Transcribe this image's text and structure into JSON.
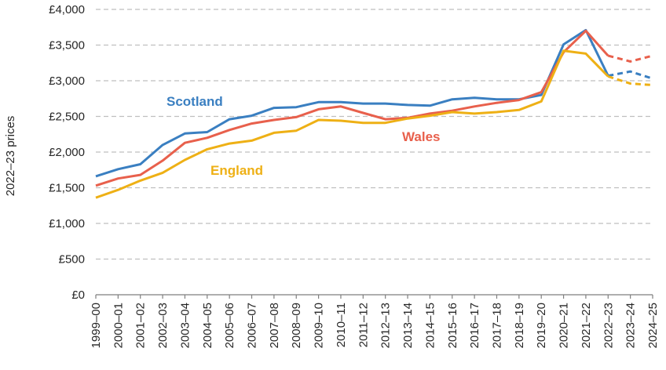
{
  "chart_data": {
    "type": "line",
    "ylabel": "2022–23 prices",
    "ylim": [
      0,
      4000
    ],
    "yticks": [
      0,
      500,
      1000,
      1500,
      2000,
      2500,
      3000,
      3500,
      4000
    ],
    "ytick_labels": [
      "£0",
      "£500",
      "£1,000",
      "£1,500",
      "£2,000",
      "£2,500",
      "£3,000",
      "£3,500",
      "£4,000"
    ],
    "grid": true,
    "categories": [
      "1999–00",
      "2000–01",
      "2001–02",
      "2002–03",
      "2003–04",
      "2004–05",
      "2005–06",
      "2006–07",
      "2007–08",
      "2008–09",
      "2009–10",
      "2010–11",
      "2011–12",
      "2012–13",
      "2013–14",
      "2014–15",
      "2015–16",
      "2016–17",
      "2017–18",
      "2018–19",
      "2019–20",
      "2020–21",
      "2021–22",
      "2022–23",
      "2023–24",
      "2024–25"
    ],
    "dashed_from": "2022–23",
    "series": [
      {
        "name": "Scotland",
        "color": "#3a7fc1",
        "values": [
          1660,
          1760,
          1830,
          2100,
          2260,
          2280,
          2460,
          2510,
          2620,
          2630,
          2700,
          2700,
          2680,
          2680,
          2660,
          2650,
          2740,
          2760,
          2740,
          2740,
          2800,
          3510,
          3710,
          3070,
          3130,
          3030
        ]
      },
      {
        "name": "Wales",
        "color": "#e8604c",
        "values": [
          1530,
          1630,
          1680,
          1880,
          2130,
          2200,
          2310,
          2400,
          2450,
          2490,
          2600,
          2640,
          2550,
          2460,
          2480,
          2540,
          2580,
          2640,
          2690,
          2730,
          2840,
          3400,
          3700,
          3350,
          3270,
          3350
        ]
      },
      {
        "name": "England",
        "color": "#eeb015",
        "values": [
          1360,
          1470,
          1600,
          1710,
          1890,
          2040,
          2120,
          2160,
          2270,
          2300,
          2450,
          2440,
          2410,
          2410,
          2470,
          2510,
          2560,
          2540,
          2560,
          2590,
          2710,
          3420,
          3380,
          3060,
          2960,
          2940
        ]
      }
    ]
  }
}
